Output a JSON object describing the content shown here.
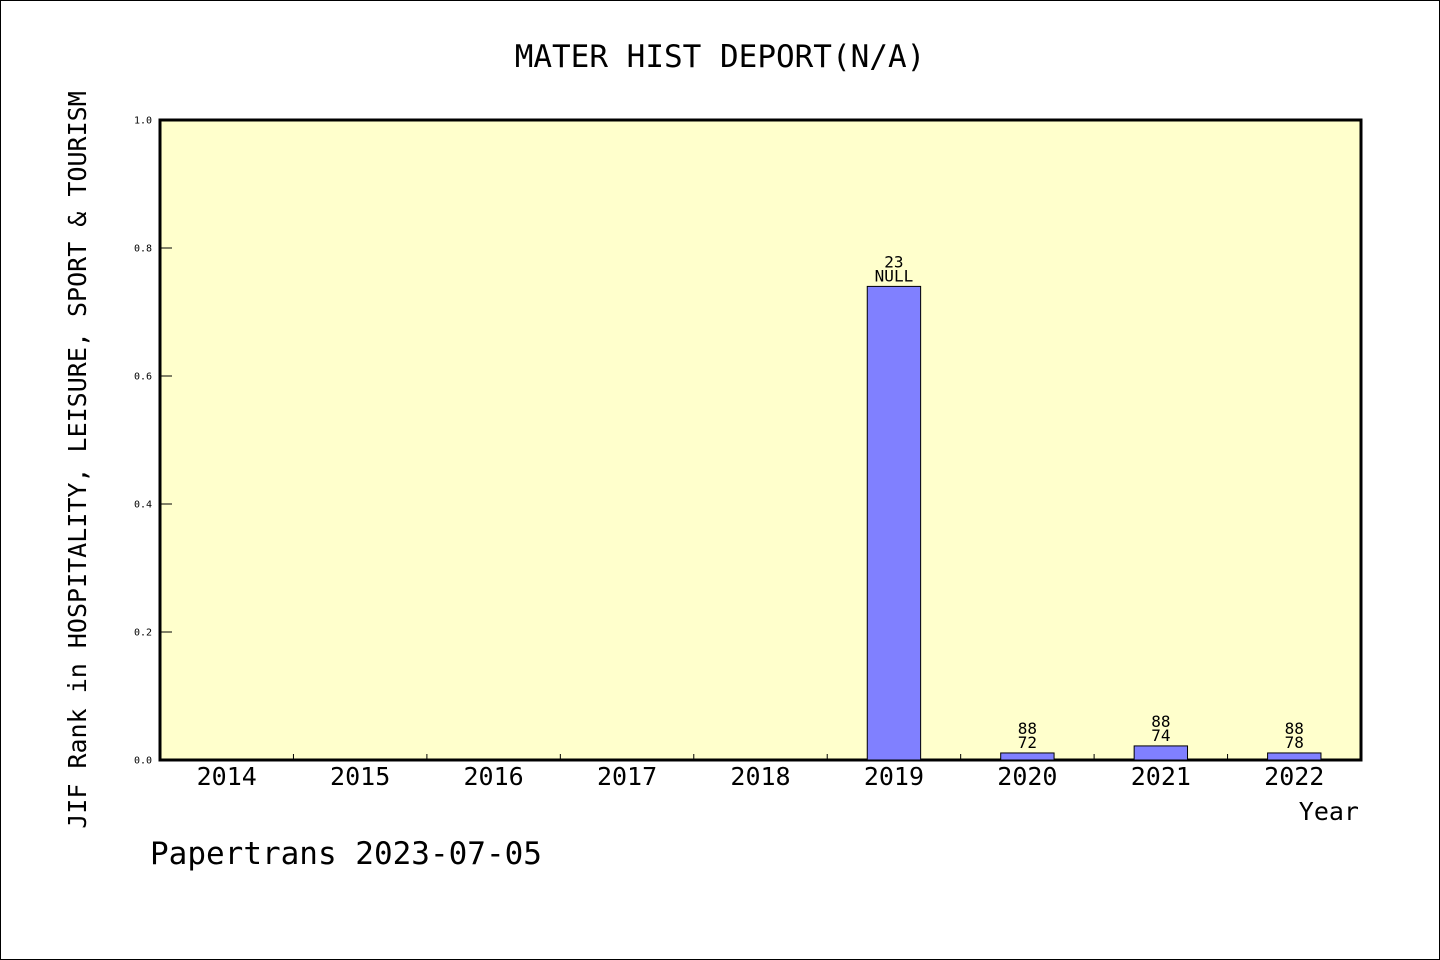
{
  "chart_data": {
    "type": "bar",
    "title": "MATER HIST DEPORT(N/A)",
    "xlabel": "Year",
    "ylabel": "JIF Rank in HOSPITALITY, LEISURE, SPORT & TOURISM",
    "categories": [
      "2014",
      "2015",
      "2016",
      "2017",
      "2018",
      "2019",
      "2020",
      "2021",
      "2022"
    ],
    "values": [
      null,
      null,
      null,
      null,
      null,
      0.74,
      0.011,
      0.022,
      0.011
    ],
    "bar_labels": [
      null,
      null,
      null,
      null,
      null,
      {
        "top": "23",
        "bottom": "NULL"
      },
      {
        "top": "88",
        "bottom": "72"
      },
      {
        "top": "88",
        "bottom": "74"
      },
      {
        "top": "88",
        "bottom": "78"
      }
    ],
    "ylim": [
      0,
      1.0
    ],
    "yticks": [
      "0.0",
      "0.2",
      "0.4",
      "0.6",
      "0.8",
      "1.0"
    ],
    "grid": false,
    "colors": {
      "plot_background": "#ffffcc",
      "bar_fill": "#8080ff",
      "bar_stroke": "#000000",
      "axis": "#000000"
    }
  },
  "footer": {
    "text": "Papertrans 2023-07-05"
  }
}
